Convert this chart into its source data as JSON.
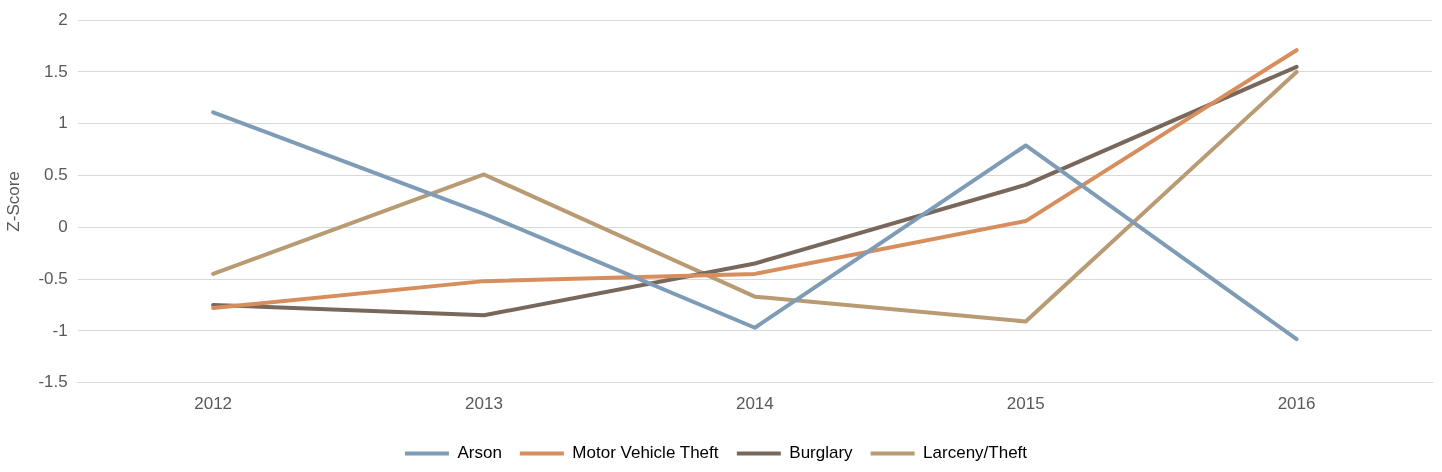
{
  "chart_data": {
    "type": "line",
    "ylabel": "Z-Score",
    "categories": [
      "2012",
      "2013",
      "2014",
      "2015",
      "2016"
    ],
    "series": [
      {
        "name": "Arson",
        "color": "#7f9cb6",
        "values": [
          1.11,
          0.13,
          -0.97,
          0.79,
          -1.08
        ]
      },
      {
        "name": "Motor Vehicle Theft",
        "color": "#d78e5c",
        "values": [
          -0.78,
          -0.52,
          -0.45,
          0.06,
          1.71
        ]
      },
      {
        "name": "Burglary",
        "color": "#78685b",
        "values": [
          -0.75,
          -0.85,
          -0.35,
          0.41,
          1.55
        ]
      },
      {
        "name": "Larceny/Theft",
        "color": "#b89b73",
        "values": [
          -0.45,
          0.51,
          -0.67,
          -0.91,
          1.5
        ]
      }
    ],
    "ylim": [
      -1.5,
      2
    ],
    "yticks": [
      -1.5,
      -1,
      -0.5,
      0,
      0.5,
      1,
      1.5,
      2
    ],
    "grid": "y",
    "legend": "bottom",
    "marker": "none",
    "line_style": "solid"
  }
}
